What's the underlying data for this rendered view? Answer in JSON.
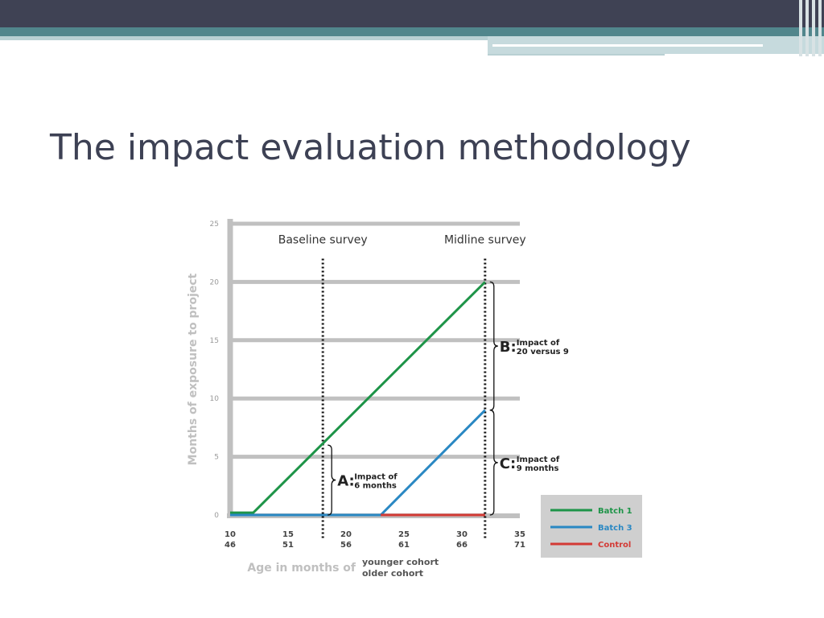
{
  "slide": {
    "title": "The impact evaluation methodology"
  },
  "colors": {
    "top_bar": "#3f4254",
    "accent_band": "#51868c",
    "light_rule": "#b8d0d3",
    "title_text": "#3d4154",
    "axis_gray": "#c0c0c0",
    "tick_gray": "#9a9a9a",
    "batch1": "#1e9448",
    "batch3": "#2a88c3",
    "control": "#d33a35",
    "legend_bg": "#cfcfcf"
  },
  "chart_data": {
    "type": "line",
    "title": "",
    "ylabel": "Months of exposure to project",
    "xlabel": "Age in months of",
    "xlabel_rows": [
      "younger cohort",
      "older cohort"
    ],
    "ylim": [
      0,
      25
    ],
    "xlim": [
      10,
      35
    ],
    "y_ticks": [
      0,
      5,
      10,
      15,
      20,
      25
    ],
    "x_ticks": [
      10,
      15,
      20,
      25,
      30,
      35
    ],
    "x_ticks_younger": [
      "10",
      "15",
      "20",
      "25",
      "30",
      "35"
    ],
    "x_ticks_older": [
      "46",
      "51",
      "56",
      "61",
      "66",
      "71"
    ],
    "grid": true,
    "legend_position": "bottom-right",
    "series": [
      {
        "name": "Batch 1",
        "color": "#1e9448",
        "x": [
          10,
          12,
          32
        ],
        "y": [
          0.2,
          0.2,
          20
        ]
      },
      {
        "name": "Batch 3",
        "color": "#2a88c3",
        "x": [
          10,
          23,
          32
        ],
        "y": [
          0,
          0,
          9
        ]
      },
      {
        "name": "Control",
        "color": "#d33a35",
        "x": [
          23,
          32
        ],
        "y": [
          0,
          0
        ]
      }
    ],
    "survey_lines": [
      {
        "label": "Baseline survey",
        "x": 18
      },
      {
        "label": "Midline survey",
        "x": 32
      }
    ],
    "annotations": [
      {
        "letter": "A:",
        "text_line1": "Impact of",
        "text_line2": "6 months",
        "x": 18,
        "y_from": 0,
        "y_to": 6
      },
      {
        "letter": "B:",
        "text_line1": "Impact of",
        "text_line2": "20 versus 9",
        "x": 32,
        "y_from": 9,
        "y_to": 20
      },
      {
        "letter": "C:",
        "text_line1": "Impact of",
        "text_line2": "9 months",
        "x": 32,
        "y_from": 0,
        "y_to": 9
      }
    ]
  }
}
